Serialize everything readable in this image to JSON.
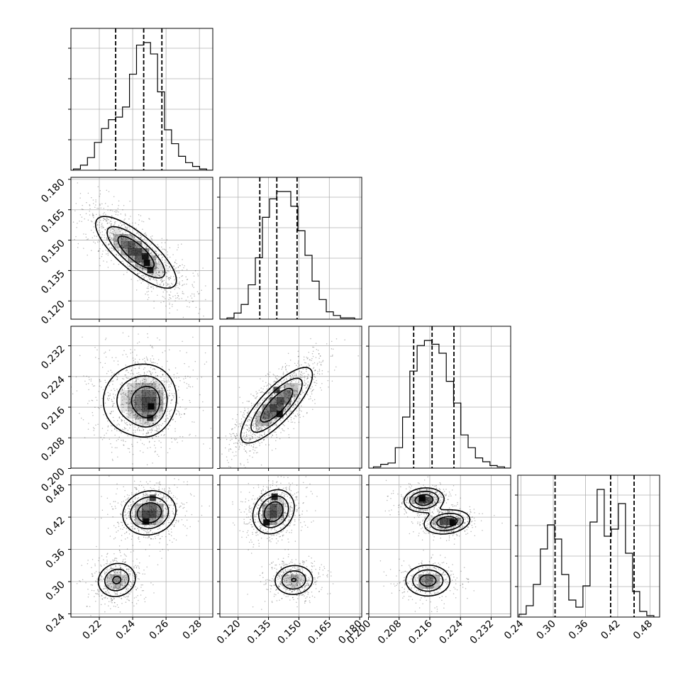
{
  "chart_data": {
    "type": "corner",
    "title": "",
    "grid": true,
    "colors": {
      "line": "#000000",
      "grid": "#b0b0b0",
      "density": "#000000"
    },
    "parameters": [
      {
        "index": 0,
        "range": [
          0.203,
          0.288
        ],
        "ticks": [
          "0.22",
          "0.24",
          "0.26",
          "0.28"
        ],
        "quantiles": [
          0.2298,
          0.2466,
          0.2575
        ],
        "hist_bin_start": 0.2045,
        "hist_bin_width": 0.0042,
        "hist_counts": [
          1,
          4,
          10,
          22,
          33,
          40,
          42,
          50,
          76,
          99,
          101,
          92,
          62,
          32,
          21,
          11,
          6,
          3,
          1,
          0
        ]
      },
      {
        "index": 1,
        "range": [
          0.111,
          0.181
        ],
        "ticks": [
          "0.120",
          "0.135",
          "0.150",
          "0.165",
          "0.180"
        ],
        "quantiles": [
          0.1307,
          0.1391,
          0.1491
        ],
        "hist_bin_start": 0.111,
        "hist_bin_width": 0.0035,
        "hist_counts": [
          0,
          1,
          5,
          12,
          28,
          50,
          83,
          98,
          104,
          104,
          92,
          72,
          52,
          31,
          16,
          6,
          3,
          1,
          1,
          0
        ]
      },
      {
        "index": 2,
        "range": [
          0.2001,
          0.2371
        ],
        "ticks": [
          "0.200",
          "0.208",
          "0.216",
          "0.224",
          "0.232"
        ],
        "quantiles": [
          0.2118,
          0.2166,
          0.2223
        ],
        "hist_bin_start": 0.2013,
        "hist_bin_width": 0.0019,
        "hist_counts": [
          1,
          3,
          4,
          16,
          40,
          76,
          96,
          100,
          97,
          90,
          68,
          51,
          26,
          16,
          8,
          5,
          2,
          1,
          0
        ]
      },
      {
        "index": 3,
        "range": [
          0.234,
          0.498
        ],
        "ticks": [
          "0.24",
          "0.30",
          "0.36",
          "0.42",
          "0.48"
        ],
        "quantiles": [
          0.3034,
          0.4068,
          0.4505
        ],
        "hist_bin_start": 0.2365,
        "hist_bin_width": 0.0132,
        "hist_counts": [
          2,
          8,
          23,
          48,
          65,
          55,
          30,
          12,
          7,
          22,
          67,
          90,
          57,
          62,
          80,
          45,
          18,
          4,
          1
        ]
      }
    ],
    "panels_2d": [
      {
        "x": 0,
        "y": 1,
        "blobs": [
          {
            "cx": 0.242,
            "cy": 0.144,
            "sx": 0.013,
            "sy": 0.0095,
            "rho": -0.78,
            "w": 1.0
          }
        ],
        "peaks": [
          {
            "x": 0.2485,
            "y": 0.1388,
            "v": 1.0
          },
          {
            "x": 0.2506,
            "y": 0.1352,
            "v": 0.92
          },
          {
            "x": 0.2475,
            "y": 0.142,
            "v": 0.75
          }
        ]
      },
      {
        "x": 0,
        "y": 2,
        "blobs": [
          {
            "cx": 0.244,
            "cy": 0.218,
            "sx": 0.013,
            "sy": 0.0055,
            "rho": 0.05,
            "w": 1.0
          },
          {
            "cx": 0.251,
            "cy": 0.2165,
            "sx": 0.006,
            "sy": 0.004,
            "rho": 0.1,
            "w": 0.55
          }
        ],
        "peaks": [
          {
            "x": 0.251,
            "y": 0.2162,
            "v": 1.0
          },
          {
            "x": 0.2505,
            "y": 0.2132,
            "v": 0.7
          }
        ]
      },
      {
        "x": 1,
        "y": 2,
        "blobs": [
          {
            "cx": 0.139,
            "cy": 0.2165,
            "sx": 0.0095,
            "sy": 0.0053,
            "rho": 0.8,
            "w": 1.0
          }
        ],
        "peaks": [
          {
            "x": 0.1405,
            "y": 0.2142,
            "v": 1.0
          },
          {
            "x": 0.139,
            "y": 0.2205,
            "v": 0.55
          }
        ]
      },
      {
        "x": 0,
        "y": 3,
        "blobs": [
          {
            "cx": 0.2305,
            "cy": 0.303,
            "sx": 0.0065,
            "sy": 0.018,
            "rho": 0.1,
            "w": 0.75
          },
          {
            "cx": 0.25,
            "cy": 0.428,
            "sx": 0.0085,
            "sy": 0.022,
            "rho": 0.1,
            "w": 1.0
          }
        ],
        "peaks": [
          {
            "x": 0.248,
            "y": 0.412,
            "v": 1.0
          },
          {
            "x": 0.252,
            "y": 0.456,
            "v": 0.62
          }
        ]
      },
      {
        "x": 1,
        "y": 3,
        "blobs": [
          {
            "cx": 0.1375,
            "cy": 0.43,
            "sx": 0.0055,
            "sy": 0.022,
            "rho": 0.2,
            "w": 1.0
          },
          {
            "cx": 0.1475,
            "cy": 0.303,
            "sx": 0.0055,
            "sy": 0.016,
            "rho": 0.05,
            "w": 0.72
          }
        ],
        "peaks": [
          {
            "x": 0.134,
            "y": 0.41,
            "v": 1.0
          },
          {
            "x": 0.138,
            "y": 0.458,
            "v": 0.9
          }
        ]
      },
      {
        "x": 2,
        "y": 3,
        "blobs": [
          {
            "cx": 0.2155,
            "cy": 0.302,
            "sx": 0.0032,
            "sy": 0.016,
            "rho": 0.0,
            "w": 0.75
          },
          {
            "cx": 0.2145,
            "cy": 0.452,
            "sx": 0.0028,
            "sy": 0.012,
            "rho": 0.1,
            "w": 0.85
          },
          {
            "cx": 0.2205,
            "cy": 0.411,
            "sx": 0.0032,
            "sy": 0.012,
            "rho": 0.2,
            "w": 0.85
          }
        ],
        "peaks": [
          {
            "x": 0.214,
            "y": 0.455,
            "v": 1.0
          },
          {
            "x": 0.222,
            "y": 0.41,
            "v": 0.95
          }
        ]
      }
    ]
  }
}
